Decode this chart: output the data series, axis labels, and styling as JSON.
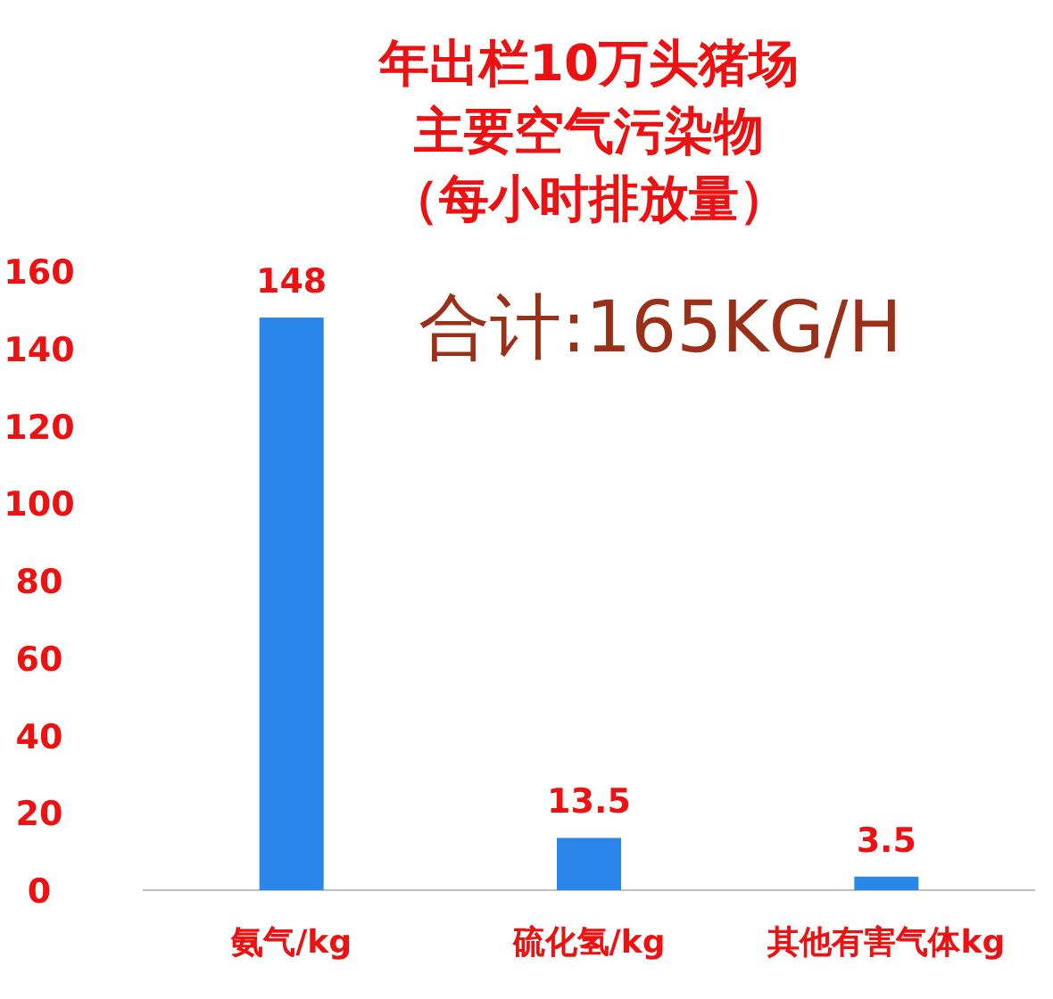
{
  "chart_data": {
    "type": "bar",
    "title": "年出栏10万头猪场主要空气污染物",
    "subtitle": "（每小时排放量）",
    "annotations": [
      "合计:165KG/H"
    ],
    "categories": [
      "氨气/kg",
      "硫化氢/kg",
      "其他有害气体kg"
    ],
    "values": [
      148,
      13.5,
      3.5
    ],
    "color": "#2a86e8",
    "ylim": [
      0,
      160
    ],
    "yticks": [
      0,
      20,
      40,
      60,
      80,
      100,
      120,
      140,
      160
    ],
    "data_labels": true,
    "grid": false,
    "legend": false
  }
}
